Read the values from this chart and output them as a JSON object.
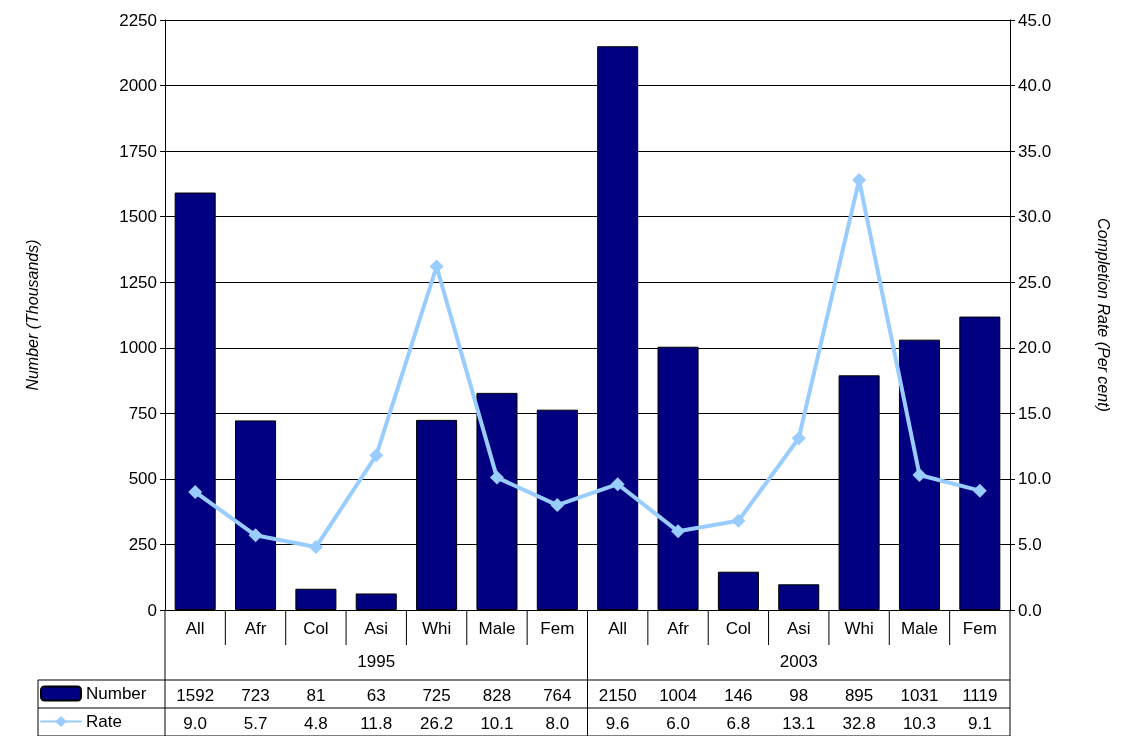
{
  "chart_data": {
    "type": "bar",
    "ylabel": "Number (Thousands)",
    "y2label": "Completion Rate (Per cent)",
    "categories": [
      "All",
      "Afr",
      "Col",
      "Asi",
      "Whi",
      "Male",
      "Fem",
      "All",
      "Afr",
      "Col",
      "Asi",
      "Whi",
      "Male",
      "Fem"
    ],
    "annotations": [
      "1995",
      "2003"
    ],
    "series": [
      {
        "name": "Number",
        "color": "#000080",
        "values": [
          1592,
          723,
          81,
          63,
          725,
          828,
          764,
          2150,
          1004,
          146,
          98,
          895,
          1031,
          1119
        ],
        "value_labels": [
          "1592",
          "723",
          "81",
          "63",
          "725",
          "828",
          "764",
          "2150",
          "1004",
          "146",
          "98",
          "895",
          "1031",
          "1119"
        ]
      },
      {
        "name": "Rate",
        "type": "line",
        "axis": "y2",
        "color": "#99ccff",
        "marker": "diamond",
        "line_style": "solid",
        "values": [
          9.0,
          5.7,
          4.8,
          11.8,
          26.2,
          10.1,
          8.0,
          9.6,
          6.0,
          6.8,
          13.1,
          32.8,
          10.3,
          9.1
        ],
        "value_labels": [
          "9.0",
          "5.7",
          "4.8",
          "11.8",
          "26.2",
          "10.1",
          "8.0",
          "9.6",
          "6.0",
          "6.8",
          "13.1",
          "32.8",
          "10.3",
          "9.1"
        ]
      }
    ],
    "ylim": [
      0,
      2250
    ],
    "yticks": [
      0,
      250,
      500,
      750,
      1000,
      1250,
      1500,
      1750,
      2000,
      2250
    ],
    "y2lim": [
      0,
      45
    ],
    "y2ticks": [
      {
        "value": 0,
        "label": "0.0"
      },
      {
        "value": 5,
        "label": "5.0"
      },
      {
        "value": 10,
        "label": "10.0"
      },
      {
        "value": 15,
        "label": "15.0"
      },
      {
        "value": 20,
        "label": "20.0"
      },
      {
        "value": 25,
        "label": "25.0"
      },
      {
        "value": 30,
        "label": "30.0"
      },
      {
        "value": 35,
        "label": "35.0"
      },
      {
        "value": 40,
        "label": "40.0"
      },
      {
        "value": 45,
        "label": "45.0"
      }
    ],
    "grid": "y",
    "legend": "bottom left"
  }
}
